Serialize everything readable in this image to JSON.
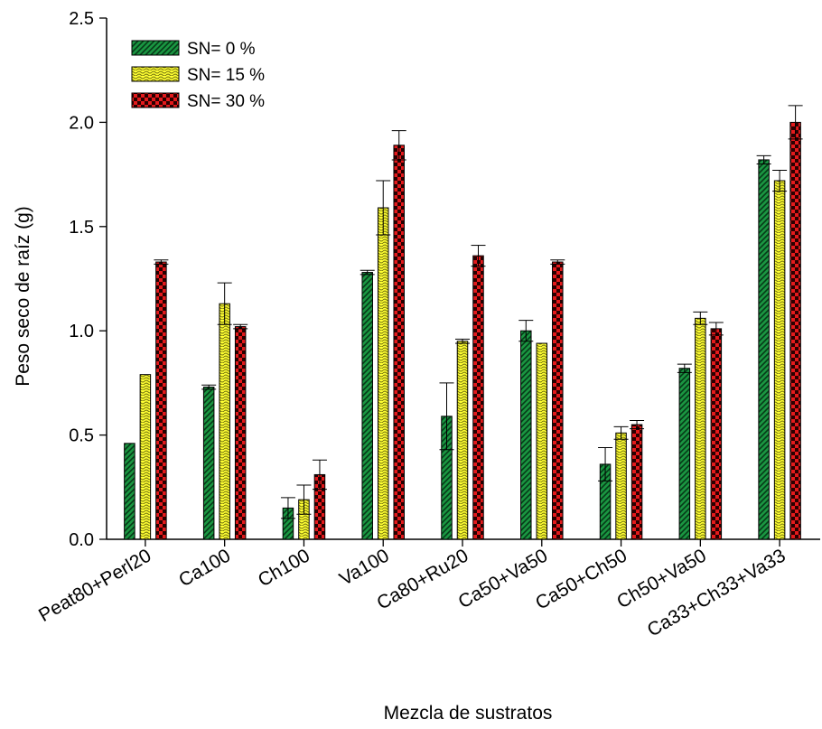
{
  "chart_data": {
    "type": "bar",
    "title": "",
    "xlabel": "Mezcla de sustratos",
    "ylabel": "Peso seco de raíz (g)",
    "ylim": [
      0,
      2.5
    ],
    "yticks": [
      "0.0",
      "0.5",
      "1.0",
      "1.5",
      "2.0",
      "2.5"
    ],
    "grid": false,
    "legend_position": "top-left",
    "categories": [
      "Peat80+Perl20",
      "Ca100",
      "Ch100",
      "Va100",
      "Ca80+Ru20",
      "Ca50+Va50",
      "Ca50+Ch50",
      "Ch50+Va50",
      "Ca33+Ch33+Va33"
    ],
    "series": [
      {
        "name": "SN= 0 %",
        "color": "#1a9641",
        "pattern": "diagonal-hatch",
        "values": [
          0.46,
          0.73,
          0.15,
          1.28,
          0.59,
          1.0,
          0.36,
          0.82,
          1.82
        ],
        "errors": [
          0.0,
          0.01,
          0.05,
          0.01,
          0.16,
          0.05,
          0.08,
          0.02,
          0.02
        ]
      },
      {
        "name": "SN= 15 %",
        "color": "#ffff33",
        "pattern": "wavy",
        "values": [
          0.79,
          1.13,
          0.19,
          1.59,
          0.95,
          0.94,
          0.51,
          1.06,
          1.72
        ],
        "errors": [
          0.0,
          0.1,
          0.07,
          0.13,
          0.01,
          0.0,
          0.03,
          0.03,
          0.05
        ]
      },
      {
        "name": "SN= 30 %",
        "color": "#e41a1c",
        "pattern": "checker",
        "values": [
          1.33,
          1.02,
          0.31,
          1.89,
          1.36,
          1.33,
          0.55,
          1.01,
          2.0
        ],
        "errors": [
          0.01,
          0.01,
          0.07,
          0.07,
          0.05,
          0.01,
          0.02,
          0.03,
          0.08
        ]
      }
    ]
  }
}
